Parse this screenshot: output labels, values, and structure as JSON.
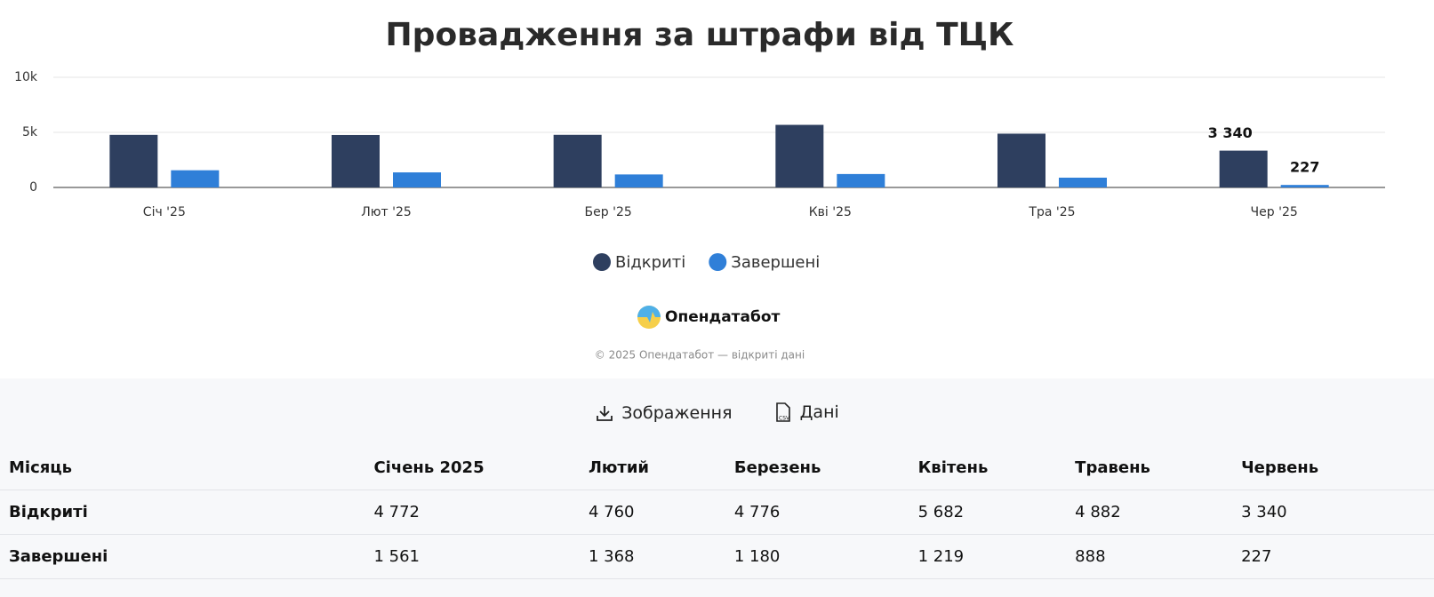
{
  "chart_data": {
    "type": "bar",
    "title": "Провадження за штрафи від ТЦК",
    "categories": [
      "Січ '25",
      "Лют '25",
      "Бер '25",
      "Кві '25",
      "Тра '25",
      "Чер '25"
    ],
    "series": [
      {
        "name": "Відкриті",
        "color": "#2e3f5f",
        "values": [
          4772,
          4760,
          4776,
          5682,
          4882,
          3340
        ],
        "value_labels": [
          null,
          null,
          null,
          null,
          null,
          "3 340"
        ]
      },
      {
        "name": "Завершені",
        "color": "#2f7fd8",
        "values": [
          1561,
          1368,
          1180,
          1219,
          888,
          227
        ],
        "value_labels": [
          null,
          null,
          null,
          null,
          null,
          "227"
        ]
      }
    ],
    "ylim": [
      0,
      10000
    ],
    "yticks": [
      0,
      {
        "value": 5000,
        "label": "5k"
      },
      {
        "value": 10000,
        "label": "10k"
      }
    ],
    "grid": true,
    "legend": "bottom"
  },
  "brand": "Опендатабот",
  "copyright": "© 2025 Опендатабот — відкриті дані",
  "buttons": [
    "Зображення",
    "Дані"
  ],
  "table": {
    "header": [
      "Місяць",
      "Січень 2025",
      "Лютий",
      "Березень",
      "Квітень",
      "Травень",
      "Червень"
    ],
    "rows": [
      [
        "Відкриті",
        "4 772",
        "4 760",
        "4 776",
        "5 682",
        "4 882",
        "3 340"
      ],
      [
        "Завершені",
        "1 561",
        "1 368",
        "1 180",
        "1 219",
        "888",
        "227"
      ]
    ]
  }
}
